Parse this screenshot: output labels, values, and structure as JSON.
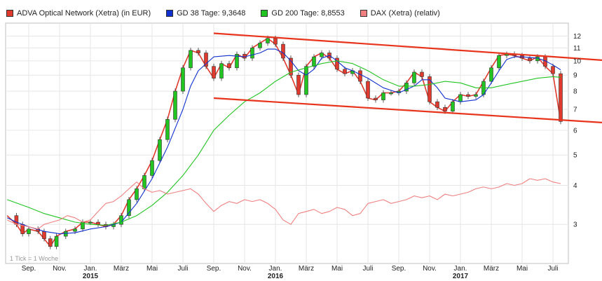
{
  "legend": [
    {
      "label": "ADVA Optical Network (Xetra) (in EUR)",
      "color": "#e03a2e"
    },
    {
      "label": "GD 38 Tage: 9,3648",
      "color": "#1030d0"
    },
    {
      "label": "GD 200 Tage: 8,8553",
      "color": "#22c422"
    },
    {
      "label": "DAX (Xetra) (relativ)",
      "color": "#f08080"
    }
  ],
  "footnote": "1 Tick = 1 Woche",
  "chart_data": {
    "type": "line",
    "yscale": "log",
    "ylim": [
      2.25,
      13.2
    ],
    "y_ticks": [
      3,
      4,
      5,
      6,
      7,
      8,
      9,
      10,
      11,
      12
    ],
    "x_ticks": [
      {
        "label": "Sep.",
        "t": 0
      },
      {
        "label": "Nov.",
        "t": 2
      },
      {
        "label": "Jan.",
        "t": 4,
        "year": "2015"
      },
      {
        "label": "März",
        "t": 6
      },
      {
        "label": "Mai",
        "t": 8
      },
      {
        "label": "Juli",
        "t": 10
      },
      {
        "label": "Sep.",
        "t": 12
      },
      {
        "label": "Nov.",
        "t": 14
      },
      {
        "label": "Jan.",
        "t": 16,
        "year": "2016"
      },
      {
        "label": "März",
        "t": 18
      },
      {
        "label": "Mai",
        "t": 20
      },
      {
        "label": "Juli",
        "t": 22
      },
      {
        "label": "Sep.",
        "t": 24
      },
      {
        "label": "Nov.",
        "t": 26
      },
      {
        "label": "Jan.",
        "t": 28,
        "year": "2017"
      },
      {
        "label": "März",
        "t": 30
      },
      {
        "label": "Mai",
        "t": 32
      },
      {
        "label": "Juli",
        "t": 34
      }
    ],
    "xlim": [
      -1.5,
      35.0
    ],
    "series": [
      {
        "name": "ADVA Optical Network (Xetra) (in EUR)",
        "color": "#e03a2e",
        "points": [
          [
            -1.4,
            3.2
          ],
          [
            -0.8,
            3.0
          ],
          [
            -0.4,
            2.8
          ],
          [
            0,
            2.9
          ],
          [
            0.6,
            2.85
          ],
          [
            1,
            2.7
          ],
          [
            1.4,
            2.55
          ],
          [
            1.8,
            2.75
          ],
          [
            2.4,
            2.85
          ],
          [
            3,
            2.9
          ],
          [
            3.5,
            3.05
          ],
          [
            4,
            3.05
          ],
          [
            4.5,
            3.0
          ],
          [
            5,
            2.95
          ],
          [
            5.5,
            3.0
          ],
          [
            6,
            3.2
          ],
          [
            6.5,
            3.6
          ],
          [
            7,
            3.9
          ],
          [
            7.5,
            4.3
          ],
          [
            8,
            4.8
          ],
          [
            8.5,
            5.6
          ],
          [
            9,
            6.5
          ],
          [
            9.5,
            8.0
          ],
          [
            10,
            9.5
          ],
          [
            10.5,
            10.8
          ],
          [
            11,
            10.6
          ],
          [
            11.5,
            9.6
          ],
          [
            12,
            8.8
          ],
          [
            12.5,
            9.8
          ],
          [
            13,
            9.5
          ],
          [
            13.5,
            10.5
          ],
          [
            14,
            10.2
          ],
          [
            14.5,
            11.0
          ],
          [
            15,
            11.4
          ],
          [
            15.5,
            11.8
          ],
          [
            16,
            11.3
          ],
          [
            16.5,
            10.2
          ],
          [
            17,
            9.0
          ],
          [
            17.5,
            7.8
          ],
          [
            18,
            9.6
          ],
          [
            18.5,
            10.3
          ],
          [
            19,
            10.6
          ],
          [
            19.5,
            10.2
          ],
          [
            20,
            9.4
          ],
          [
            20.5,
            9.1
          ],
          [
            21,
            9.3
          ],
          [
            21.5,
            8.6
          ],
          [
            22,
            7.6
          ],
          [
            22.5,
            7.5
          ],
          [
            23,
            7.9
          ],
          [
            23.5,
            7.9
          ],
          [
            24,
            8.0
          ],
          [
            24.5,
            8.5
          ],
          [
            25,
            9.2
          ],
          [
            25.5,
            8.9
          ],
          [
            26,
            7.4
          ],
          [
            26.5,
            7.1
          ],
          [
            27,
            6.9
          ],
          [
            27.5,
            7.4
          ],
          [
            28,
            7.8
          ],
          [
            28.5,
            7.7
          ],
          [
            29,
            7.8
          ],
          [
            29.5,
            8.6
          ],
          [
            30,
            9.5
          ],
          [
            30.5,
            10.4
          ],
          [
            31,
            10.5
          ],
          [
            31.5,
            10.4
          ],
          [
            32,
            10.2
          ],
          [
            32.5,
            10.0
          ],
          [
            33,
            10.3
          ],
          [
            33.5,
            9.6
          ],
          [
            34,
            9.1
          ],
          [
            34.5,
            6.4
          ]
        ]
      },
      {
        "name": "GD 38 Tage: 9,3648",
        "color": "#1030d0",
        "points": [
          [
            -1.4,
            3.15
          ],
          [
            -0.8,
            3.05
          ],
          [
            0,
            2.95
          ],
          [
            1,
            2.85
          ],
          [
            2,
            2.8
          ],
          [
            3,
            2.82
          ],
          [
            4,
            2.9
          ],
          [
            5,
            2.95
          ],
          [
            6,
            3.05
          ],
          [
            7,
            3.5
          ],
          [
            8,
            4.2
          ],
          [
            9,
            5.3
          ],
          [
            10,
            7.0
          ],
          [
            10.5,
            8.3
          ],
          [
            11,
            9.3
          ],
          [
            12,
            10.3
          ],
          [
            13,
            10.4
          ],
          [
            14,
            10.3
          ],
          [
            15,
            10.6
          ],
          [
            15.5,
            10.9
          ],
          [
            16,
            10.9
          ],
          [
            16.5,
            10.6
          ],
          [
            17,
            10.0
          ],
          [
            17.5,
            9.3
          ],
          [
            18,
            9.0
          ],
          [
            18.5,
            9.4
          ],
          [
            19,
            10.2
          ],
          [
            19.5,
            10.4
          ],
          [
            20,
            10.0
          ],
          [
            20.5,
            9.5
          ],
          [
            21,
            9.3
          ],
          [
            22,
            8.8
          ],
          [
            23,
            8.2
          ],
          [
            24,
            7.9
          ],
          [
            25,
            8.3
          ],
          [
            25.5,
            8.7
          ],
          [
            26,
            8.7
          ],
          [
            26.5,
            8.2
          ],
          [
            27,
            7.6
          ],
          [
            28,
            7.4
          ],
          [
            29,
            7.5
          ],
          [
            29.5,
            7.8
          ],
          [
            30,
            8.5
          ],
          [
            30.5,
            9.3
          ],
          [
            31,
            10.1
          ],
          [
            31.5,
            10.3
          ],
          [
            32,
            10.3
          ],
          [
            33,
            10.2
          ],
          [
            33.5,
            10.0
          ],
          [
            34,
            9.7
          ],
          [
            34.5,
            9.36
          ]
        ]
      },
      {
        "name": "GD 200 Tage: 8,8553",
        "color": "#22c422",
        "points": [
          [
            -1.4,
            3.6
          ],
          [
            0,
            3.4
          ],
          [
            1,
            3.25
          ],
          [
            2,
            3.15
          ],
          [
            3,
            3.05
          ],
          [
            4,
            3.0
          ],
          [
            5,
            2.98
          ],
          [
            6,
            3.05
          ],
          [
            7,
            3.2
          ],
          [
            8,
            3.45
          ],
          [
            9,
            3.8
          ],
          [
            10,
            4.3
          ],
          [
            11,
            5.0
          ],
          [
            12,
            6.0
          ],
          [
            13,
            6.7
          ],
          [
            14,
            7.4
          ],
          [
            15,
            7.9
          ],
          [
            16,
            8.6
          ],
          [
            17,
            9.2
          ],
          [
            18,
            9.5
          ],
          [
            19,
            9.8
          ],
          [
            20,
            10.0
          ],
          [
            21,
            9.8
          ],
          [
            22,
            9.3
          ],
          [
            23,
            8.7
          ],
          [
            24,
            8.3
          ],
          [
            25,
            8.3
          ],
          [
            26,
            8.4
          ],
          [
            27,
            8.6
          ],
          [
            28,
            8.5
          ],
          [
            29,
            8.2
          ],
          [
            30,
            8.2
          ],
          [
            31,
            8.4
          ],
          [
            32,
            8.6
          ],
          [
            33,
            8.8
          ],
          [
            34,
            8.9
          ],
          [
            34.5,
            8.86
          ]
        ]
      },
      {
        "name": "DAX (Xetra) (relativ)",
        "color": "#f08080",
        "points": [
          [
            -1.4,
            3.1
          ],
          [
            -0.8,
            3.0
          ],
          [
            0,
            2.95
          ],
          [
            0.6,
            2.9
          ],
          [
            1,
            3.0
          ],
          [
            1.5,
            3.05
          ],
          [
            2,
            3.1
          ],
          [
            2.5,
            3.2
          ],
          [
            3,
            3.15
          ],
          [
            3.5,
            3.05
          ],
          [
            4,
            3.1
          ],
          [
            4.5,
            3.3
          ],
          [
            5,
            3.5
          ],
          [
            5.5,
            3.55
          ],
          [
            6,
            3.7
          ],
          [
            6.5,
            3.9
          ],
          [
            7,
            4.1
          ],
          [
            7.5,
            3.9
          ],
          [
            8,
            3.8
          ],
          [
            8.5,
            3.85
          ],
          [
            9,
            3.75
          ],
          [
            9.5,
            3.8
          ],
          [
            10,
            3.85
          ],
          [
            10.5,
            3.9
          ],
          [
            11,
            3.75
          ],
          [
            11.5,
            3.5
          ],
          [
            12,
            3.3
          ],
          [
            12.5,
            3.45
          ],
          [
            13,
            3.55
          ],
          [
            13.5,
            3.5
          ],
          [
            14,
            3.6
          ],
          [
            14.5,
            3.55
          ],
          [
            15,
            3.6
          ],
          [
            15.5,
            3.5
          ],
          [
            16,
            3.35
          ],
          [
            16.5,
            3.1
          ],
          [
            17,
            3.0
          ],
          [
            17.5,
            3.25
          ],
          [
            18,
            3.3
          ],
          [
            18.5,
            3.35
          ],
          [
            19,
            3.25
          ],
          [
            19.5,
            3.3
          ],
          [
            20,
            3.4
          ],
          [
            20.5,
            3.35
          ],
          [
            21,
            3.2
          ],
          [
            21.5,
            3.25
          ],
          [
            22,
            3.5
          ],
          [
            22.5,
            3.55
          ],
          [
            23,
            3.6
          ],
          [
            23.5,
            3.5
          ],
          [
            24,
            3.55
          ],
          [
            24.5,
            3.6
          ],
          [
            25,
            3.7
          ],
          [
            25.5,
            3.65
          ],
          [
            26,
            3.7
          ],
          [
            26.5,
            3.6
          ],
          [
            27,
            3.75
          ],
          [
            27.5,
            3.7
          ],
          [
            28,
            3.75
          ],
          [
            28.5,
            3.8
          ],
          [
            29,
            3.9
          ],
          [
            29.5,
            3.95
          ],
          [
            30,
            3.9
          ],
          [
            30.5,
            3.95
          ],
          [
            31,
            4.05
          ],
          [
            31.5,
            4.0
          ],
          [
            32,
            4.05
          ],
          [
            32.5,
            4.2
          ],
          [
            33,
            4.15
          ],
          [
            33.5,
            4.2
          ],
          [
            34,
            4.1
          ],
          [
            34.5,
            4.05
          ]
        ]
      }
    ],
    "trend_lines": [
      {
        "color": "#e8341c",
        "from": [
          12.0,
          12.25
        ],
        "to": [
          35.0,
          10.05
        ]
      },
      {
        "color": "#e8341c",
        "from": [
          12.0,
          7.6
        ],
        "to": [
          35.0,
          6.35
        ]
      }
    ]
  }
}
